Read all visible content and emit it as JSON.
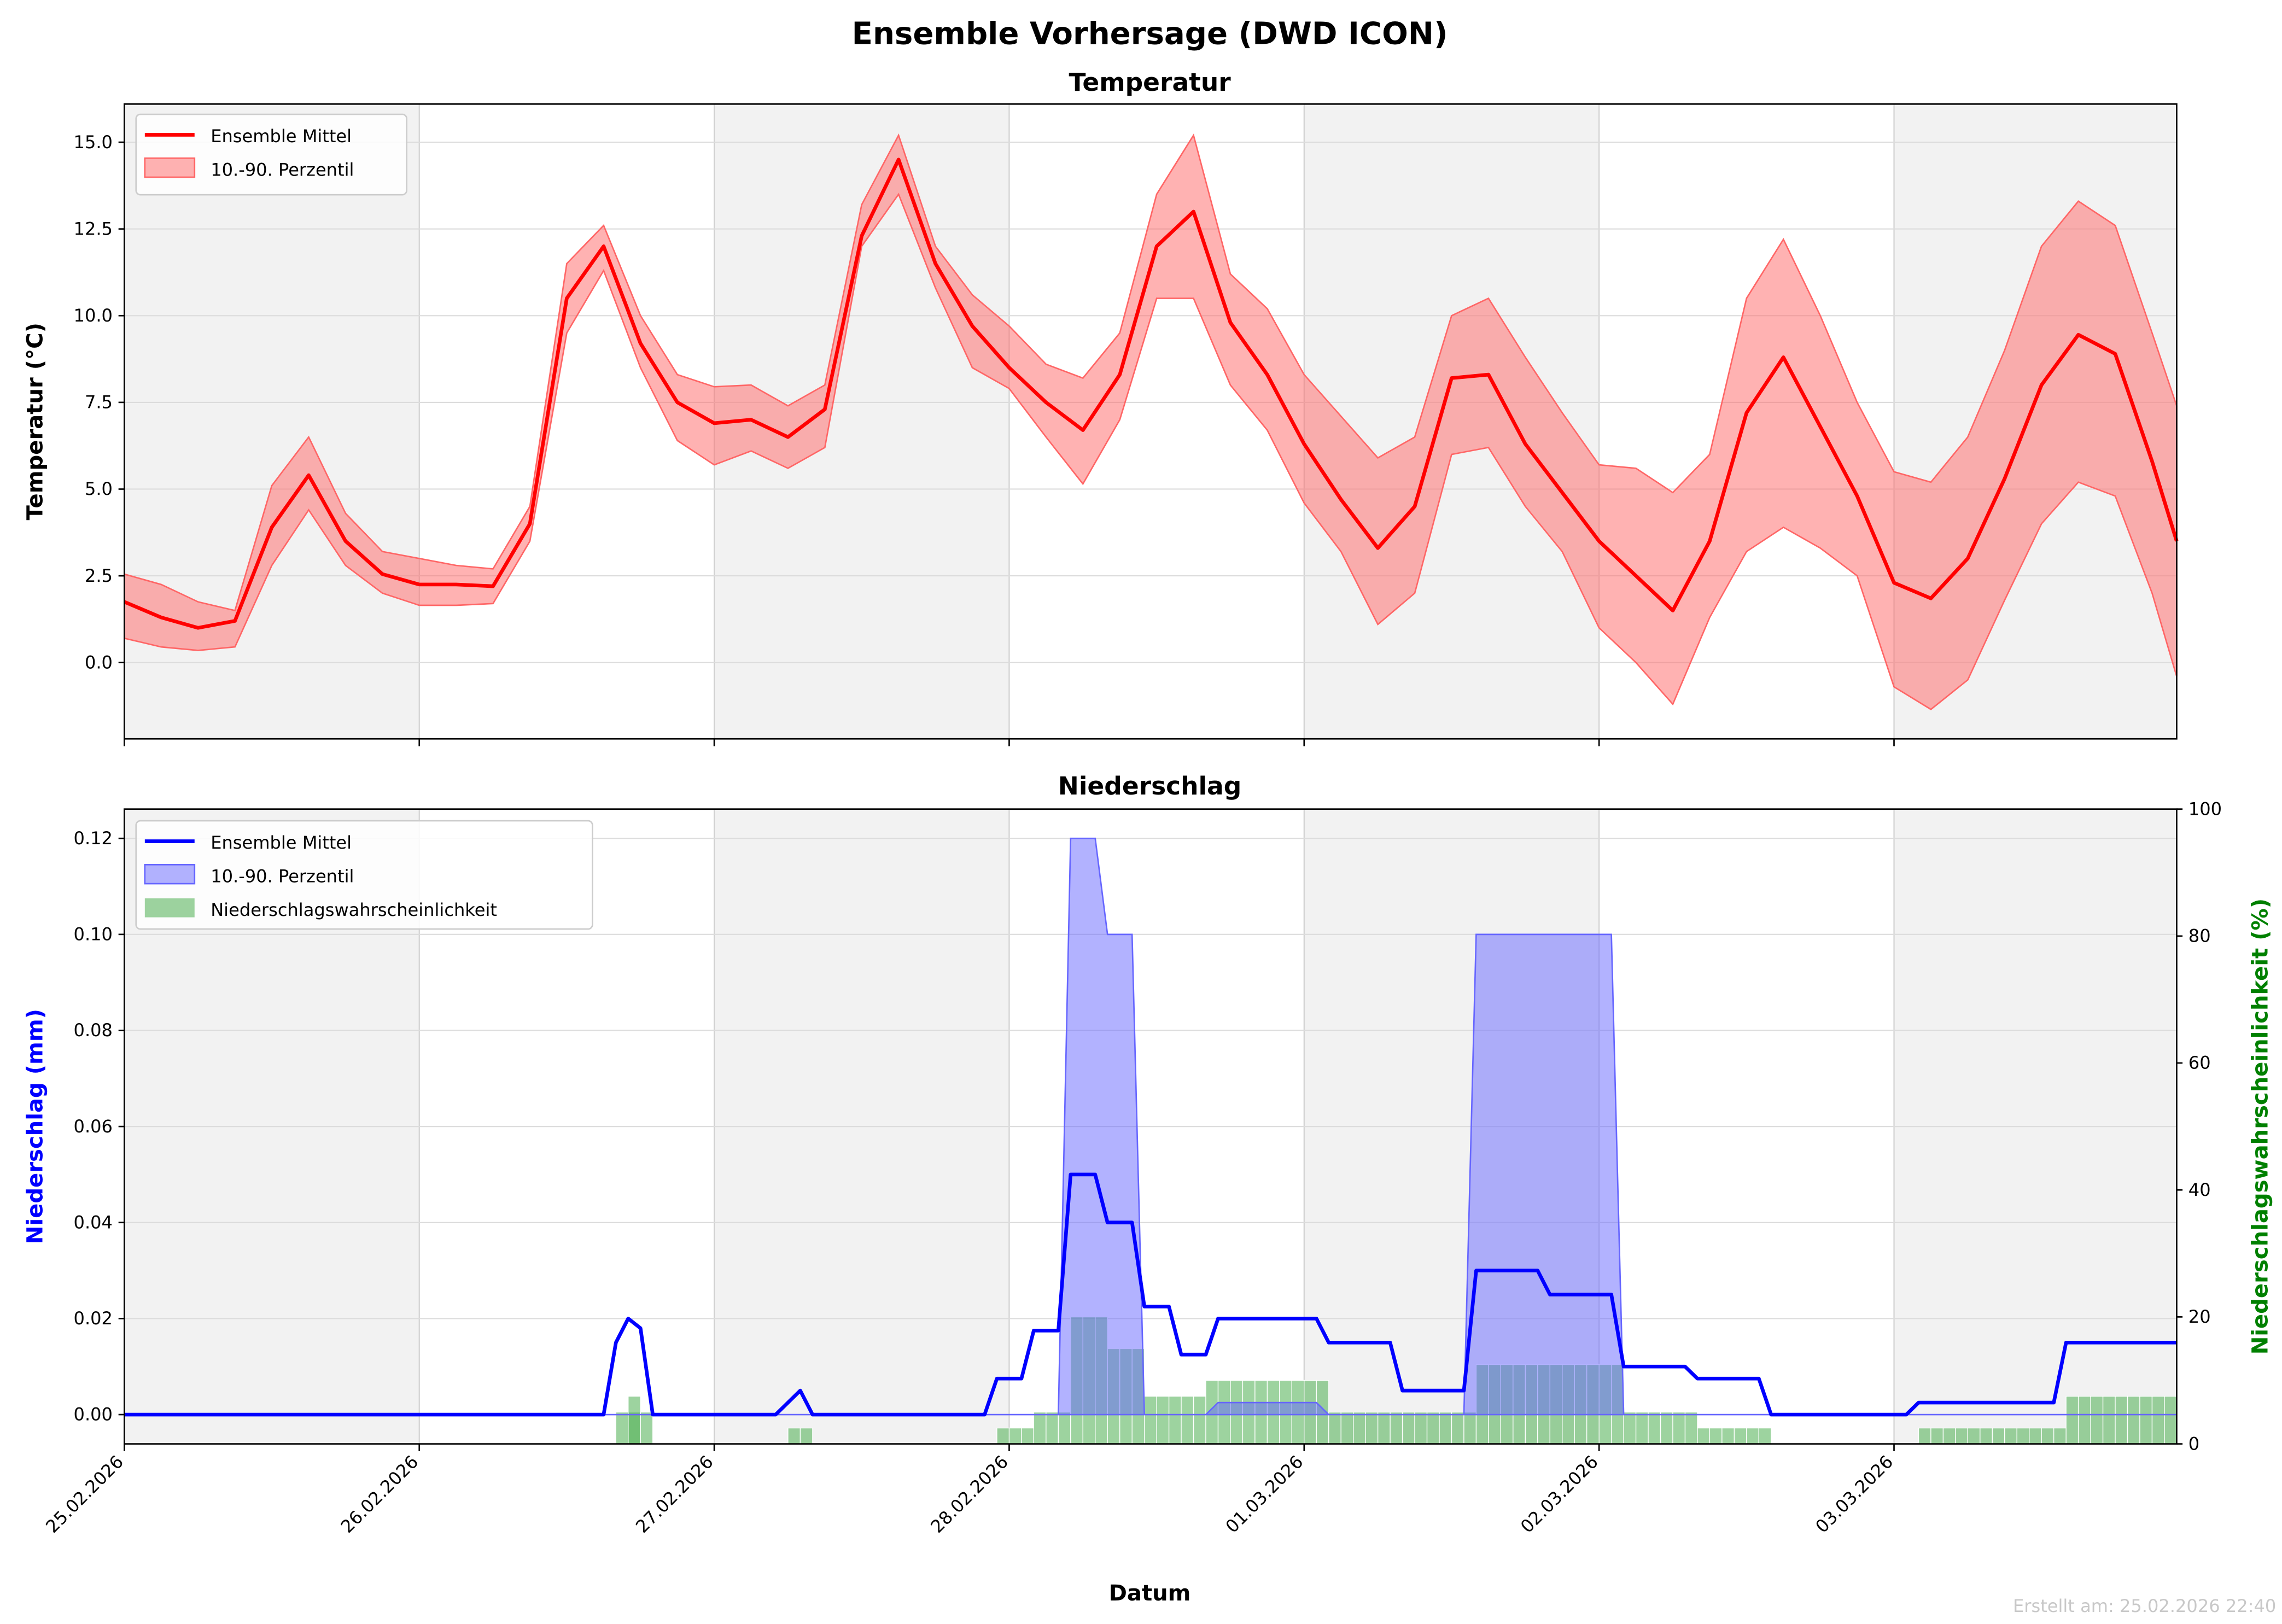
{
  "title": "Ensemble Vorhersage (DWD ICON)",
  "footer": "Erstellt am: 25.02.2026 22:40",
  "colors": {
    "temp_mean": "#ff0000",
    "temp_band": "#ff6666",
    "precip_mean": "#0000ff",
    "precip_band": "#6666ff",
    "prob": "#4caf50",
    "right_axis": "#008000",
    "day_shade": "#f2f2f2"
  },
  "chart_data": [
    {
      "type": "line",
      "title": "Temperatur",
      "ylabel": "Temperatur (°C)",
      "xlabel": "",
      "ylim": [
        -2.2,
        16.1
      ],
      "yticks": [
        "0.0",
        "2.5",
        "5.0",
        "7.5",
        "10.0",
        "12.5",
        "15.0"
      ],
      "x_unit": "hours since 25.02.2026 00:00",
      "xlim": [
        0,
        167
      ],
      "legend": {
        "placement": "top-left",
        "entries": [
          "Ensemble Mittel",
          "10.-90. Perzentil"
        ]
      },
      "hours": [
        0,
        3,
        6,
        9,
        12,
        15,
        18,
        21,
        24,
        27,
        30,
        33,
        36,
        39,
        42,
        45,
        48,
        51,
        54,
        57,
        60,
        63,
        66,
        69,
        72,
        75,
        78,
        81,
        84,
        87,
        90,
        93,
        96,
        99,
        102,
        105,
        108,
        111,
        114,
        117,
        120,
        123,
        126,
        129,
        132,
        135,
        138,
        141,
        144,
        147,
        150,
        153,
        156,
        159,
        162,
        165,
        167
      ],
      "mean": [
        1.75,
        1.3,
        1.0,
        1.2,
        3.9,
        5.4,
        3.5,
        2.55,
        2.25,
        2.25,
        2.2,
        4.0,
        10.5,
        12.0,
        9.2,
        7.5,
        6.9,
        7.0,
        6.5,
        7.3,
        12.3,
        14.5,
        11.5,
        9.7,
        8.5,
        7.5,
        6.7,
        8.3,
        12.0,
        13.0,
        9.8,
        8.3,
        6.3,
        4.7,
        3.3,
        4.5,
        8.2,
        8.3,
        6.3,
        4.9,
        3.5,
        2.5,
        1.5,
        3.5,
        7.2,
        8.8,
        6.8,
        4.8,
        2.3,
        1.85,
        3.0,
        5.3,
        8.0,
        9.45,
        8.9,
        5.8,
        3.5
      ],
      "p10": [
        0.7,
        0.45,
        0.35,
        0.45,
        2.8,
        4.4,
        2.8,
        2.0,
        1.65,
        1.65,
        1.7,
        3.5,
        9.5,
        11.3,
        8.5,
        6.4,
        5.7,
        6.1,
        5.6,
        6.2,
        12.0,
        13.5,
        10.8,
        8.5,
        7.9,
        6.5,
        5.15,
        7.0,
        10.5,
        10.5,
        8.0,
        6.7,
        4.6,
        3.2,
        1.1,
        2.0,
        6.0,
        6.2,
        4.5,
        3.2,
        1.0,
        0.0,
        -1.2,
        1.3,
        3.2,
        3.9,
        3.3,
        2.5,
        -0.7,
        -1.35,
        -0.5,
        1.8,
        4.0,
        5.2,
        4.8,
        2.0,
        -0.4
      ],
      "p90": [
        2.55,
        2.25,
        1.75,
        1.5,
        5.1,
        6.5,
        4.3,
        3.2,
        3.0,
        2.8,
        2.7,
        4.5,
        11.5,
        12.6,
        10.0,
        8.3,
        7.95,
        8.0,
        7.4,
        8.0,
        13.2,
        15.2,
        12.0,
        10.6,
        9.7,
        8.6,
        8.2,
        9.5,
        13.5,
        15.2,
        11.2,
        10.2,
        8.3,
        7.1,
        5.9,
        6.5,
        10.0,
        10.5,
        8.8,
        7.2,
        5.7,
        5.6,
        4.9,
        6.0,
        10.5,
        12.2,
        10.0,
        7.5,
        5.5,
        5.2,
        6.5,
        9.0,
        12.0,
        13.3,
        12.6,
        9.5,
        7.4
      ]
    },
    {
      "type": "line",
      "title": "Niederschlag",
      "ylabel": "Niederschlag (mm)",
      "y2label": "Niederschlagswahrscheinlichkeit (%)",
      "xlabel": "Datum",
      "ylim": [
        -0.0061,
        0.1261
      ],
      "y2lim": [
        0,
        100
      ],
      "yticks": [
        "0.00",
        "0.02",
        "0.04",
        "0.06",
        "0.08",
        "0.10",
        "0.12"
      ],
      "y2ticks": [
        "0",
        "20",
        "40",
        "60",
        "80",
        "100"
      ],
      "xticks": [
        "25.02.2026",
        "26.02.2026",
        "27.02.2026",
        "28.02.2026",
        "01.03.2026",
        "02.03.2026",
        "03.03.2026"
      ],
      "xlim": [
        0,
        167
      ],
      "legend": {
        "placement": "top-left",
        "entries": [
          "Ensemble Mittel",
          "10.-90. Perzentil",
          "Niederschlagswahrscheinlichkeit"
        ]
      },
      "mean": [
        [
          0,
          0
        ],
        [
          39,
          0
        ],
        [
          40,
          0.015
        ],
        [
          41,
          0.02
        ],
        [
          42,
          0.018
        ],
        [
          43,
          0
        ],
        [
          53,
          0
        ],
        [
          55,
          0.005
        ],
        [
          56,
          0
        ],
        [
          70,
          0
        ],
        [
          71,
          0.0075
        ],
        [
          73,
          0.0075
        ],
        [
          74,
          0.0175
        ],
        [
          76,
          0.0175
        ],
        [
          77,
          0.05
        ],
        [
          79,
          0.05
        ],
        [
          80,
          0.04
        ],
        [
          82,
          0.04
        ],
        [
          83,
          0.0225
        ],
        [
          85,
          0.0225
        ],
        [
          86,
          0.0125
        ],
        [
          88,
          0.0125
        ],
        [
          89,
          0.02
        ],
        [
          97,
          0.02
        ],
        [
          98,
          0.015
        ],
        [
          103,
          0.015
        ],
        [
          104,
          0.005
        ],
        [
          109,
          0.005
        ],
        [
          110,
          0.03
        ],
        [
          115,
          0.03
        ],
        [
          116,
          0.025
        ],
        [
          121,
          0.025
        ],
        [
          122,
          0.01
        ],
        [
          127,
          0.01
        ],
        [
          128,
          0.0075
        ],
        [
          133,
          0.0075
        ],
        [
          134,
          0
        ],
        [
          145,
          0
        ],
        [
          146,
          0.0025
        ],
        [
          157,
          0.0025
        ],
        [
          158,
          0.015
        ],
        [
          167,
          0.015
        ]
      ],
      "p10": 0,
      "p90": [
        [
          0,
          0
        ],
        [
          76,
          0
        ],
        [
          77,
          0.12
        ],
        [
          79,
          0.12
        ],
        [
          80,
          0.1
        ],
        [
          82,
          0.1
        ],
        [
          83,
          0
        ],
        [
          88,
          0
        ],
        [
          89,
          0.0025
        ],
        [
          97,
          0.0025
        ],
        [
          98,
          0
        ],
        [
          109,
          0
        ],
        [
          110,
          0.1
        ],
        [
          121,
          0.1
        ],
        [
          122,
          0
        ],
        [
          167,
          0
        ]
      ],
      "probability_pct": [
        {
          "from": 40,
          "to": 42,
          "pct": 5
        },
        {
          "from": 41,
          "to": 41,
          "pct": 7.5
        },
        {
          "from": 54,
          "to": 55,
          "pct": 2.5
        },
        {
          "from": 71,
          "to": 73,
          "pct": 2.5
        },
        {
          "from": 74,
          "to": 76,
          "pct": 5
        },
        {
          "from": 77,
          "to": 79,
          "pct": 20
        },
        {
          "from": 80,
          "to": 82,
          "pct": 15
        },
        {
          "from": 83,
          "to": 87,
          "pct": 7.5
        },
        {
          "from": 88,
          "to": 97,
          "pct": 10
        },
        {
          "from": 98,
          "to": 109,
          "pct": 5
        },
        {
          "from": 110,
          "to": 121,
          "pct": 12.5
        },
        {
          "from": 122,
          "to": 127,
          "pct": 5
        },
        {
          "from": 128,
          "to": 133,
          "pct": 2.5
        },
        {
          "from": 146,
          "to": 157,
          "pct": 2.5
        },
        {
          "from": 158,
          "to": 166,
          "pct": 7.5
        }
      ]
    }
  ]
}
